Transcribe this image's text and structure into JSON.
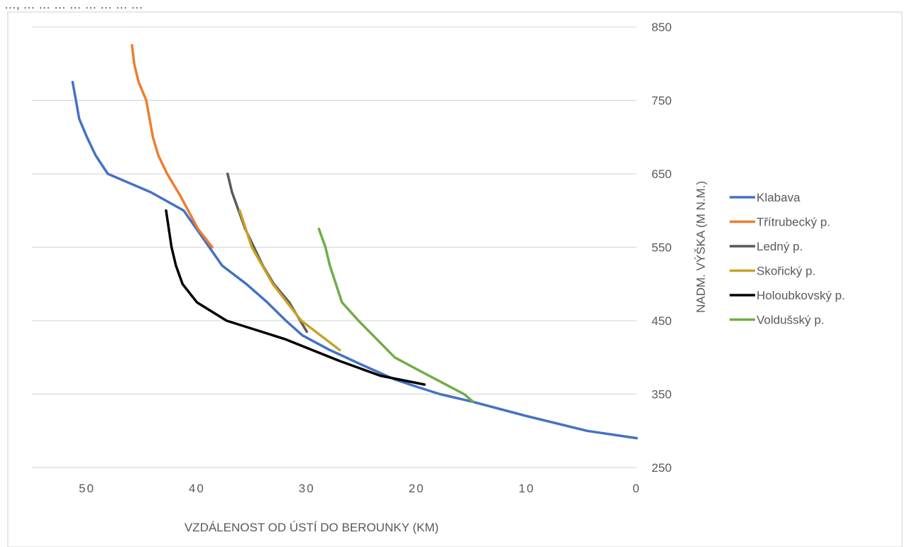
{
  "header_text": "…, … … … … … … … …",
  "chart_data": {
    "type": "line",
    "xlabel": "VZDÁLENOST OD ÚSTÍ DO BEROUNKY (KM)",
    "ylabel": "NADM. VÝŠKA (M N.M.)",
    "xlim": [
      55,
      0
    ],
    "ylim": [
      250,
      850
    ],
    "x_ticks": [
      50,
      40,
      30,
      20,
      10,
      0
    ],
    "y_ticks": [
      250,
      350,
      450,
      550,
      650,
      750,
      850
    ],
    "grid": "horizontal",
    "legend_position": "right",
    "series": [
      {
        "name": "Klabava",
        "color": "#4472C4",
        "x": [
          51.3,
          51.0,
          50.7,
          50.0,
          49.2,
          48.1,
          44.2,
          41.2,
          37.7,
          35.5,
          33.6,
          31.9,
          30.4,
          27.9,
          25.0,
          22.0,
          20.0,
          17.9,
          15.0,
          10.0,
          4.5,
          0
        ],
        "y": [
          775,
          750,
          725,
          700,
          675,
          650,
          625,
          600,
          525,
          500,
          475,
          450,
          430,
          410,
          390,
          370,
          360,
          350,
          340,
          320,
          300,
          290
        ]
      },
      {
        "name": "Třítrubecký p.",
        "color": "#ED7D31",
        "x": [
          45.9,
          45.7,
          45.3,
          44.6,
          44.0,
          43.5,
          42.7,
          41.5,
          39.9,
          38.6
        ],
        "y": [
          825,
          800,
          775,
          750,
          700,
          675,
          650,
          620,
          575,
          550
        ]
      },
      {
        "name": "Ledný p.",
        "color": "#595959",
        "x": [
          37.2,
          36.8,
          36.2,
          35.6,
          34.0,
          33.0,
          31.6,
          30.0
        ],
        "y": [
          650,
          625,
          600,
          575,
          525,
          500,
          475,
          435
        ]
      },
      {
        "name": "Skořický p.",
        "color": "#C9A227",
        "x": [
          36.1,
          35.0,
          33.1,
          30.5,
          27.0
        ],
        "y": [
          600,
          550,
          500,
          450,
          410
        ]
      },
      {
        "name": "Holoubkovský p.",
        "color": "#000000",
        "x": [
          42.8,
          42.3,
          41.9,
          41.3,
          40.0,
          37.3,
          32.0,
          27.0,
          23.3,
          19.3
        ],
        "y": [
          600,
          550,
          525,
          500,
          475,
          450,
          425,
          395,
          375,
          363
        ]
      },
      {
        "name": "Voldušský p.",
        "color": "#70AD47",
        "x": [
          28.9,
          28.3,
          27.9,
          26.8,
          25.3,
          22.0,
          19.5,
          15.7,
          14.9
        ],
        "y": [
          575,
          550,
          525,
          475,
          450,
          400,
          380,
          350,
          340
        ]
      }
    ]
  }
}
